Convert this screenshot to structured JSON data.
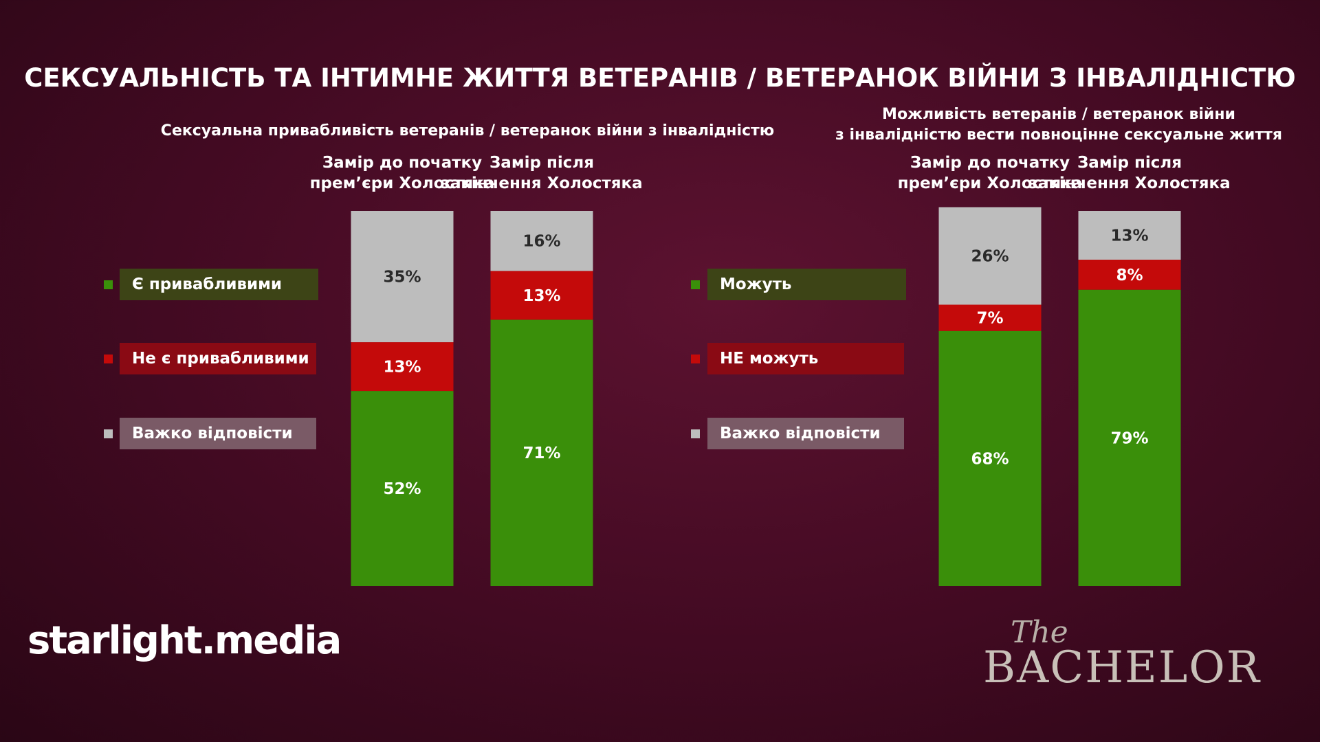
{
  "header": {
    "title": "СЕКСУАЛЬНІСТЬ ТА ІНТИМНЕ ЖИТТЯ ВЕТЕРАНІВ / ВЕТЕРАНОК ВІЙНИ З ІНВАЛІДНІСТЮ"
  },
  "chart_data": [
    {
      "type": "bar",
      "stacked": true,
      "title": "Сексуальна привабливість ветеранів / ветеранок війни з інвалідністю",
      "categories": [
        "Замір до початку\nпрем’єри Холостяка",
        "Замір після\nзакінчення Холостяка"
      ],
      "ylim": [
        0,
        100
      ],
      "series": [
        {
          "name": "Є привабливими",
          "color": "#3a8f0a",
          "values": [
            52,
            71
          ],
          "value_labels": [
            "52%",
            "71%"
          ]
        },
        {
          "name": "Не є привабливими",
          "color": "#c40a0a",
          "values": [
            13,
            13
          ],
          "value_labels": [
            "13%",
            "13%"
          ]
        },
        {
          "name": "Важко відповісти",
          "color": "#bdbdbd",
          "values": [
            35,
            16
          ],
          "value_labels": [
            "35%",
            "16%"
          ]
        }
      ]
    },
    {
      "type": "bar",
      "stacked": true,
      "title": "Можливість ветеранів / ветеранок війни\nз інвалідністю вести повноцінне сексуальне життя",
      "categories": [
        "Замір до початку\nпрем’єри Холостяка",
        "Замір після\nзакінчення Холостяка"
      ],
      "ylim": [
        0,
        100
      ],
      "series": [
        {
          "name": "Можуть",
          "color": "#3a8f0a",
          "values": [
            68,
            79
          ],
          "value_labels": [
            "68%",
            "79%"
          ]
        },
        {
          "name": "НЕ можуть",
          "color": "#c40a0a",
          "values": [
            7,
            8
          ],
          "value_labels": [
            "7%",
            "8%"
          ]
        },
        {
          "name": "Важко відповісти",
          "color": "#bdbdbd",
          "values": [
            26,
            13
          ],
          "value_labels": [
            "26%",
            "13%"
          ]
        }
      ]
    }
  ],
  "branding": {
    "left": "starlight.media",
    "right_small": "The",
    "right": "BACHELOR"
  }
}
